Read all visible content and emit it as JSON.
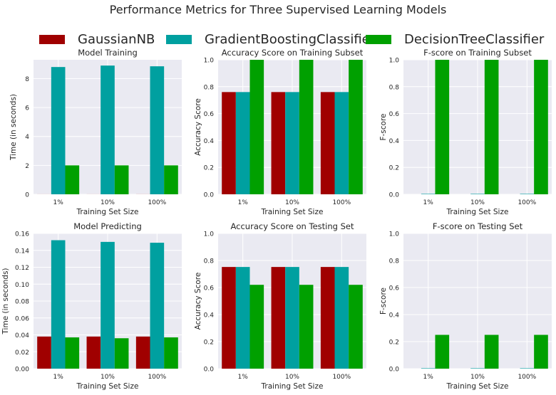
{
  "suptitle": "Performance Metrics for Three Supervised Learning Models",
  "colors": {
    "plot_bg": "#eaeaf2",
    "grid": "#ffffff",
    "series": [
      "#a00000",
      "#00a0a0",
      "#00a000"
    ]
  },
  "legend": {
    "placement": "top",
    "items": [
      "GaussianNB",
      "GradientBoostingClassifier",
      "DecisionTreeClassifier"
    ]
  },
  "chart_data": [
    {
      "type": "bar",
      "title": "Model Training",
      "xlabel": "Training Set Size",
      "ylabel": "Time (in seconds)",
      "categories": [
        "1%",
        "10%",
        "100%"
      ],
      "ylim": [
        0,
        9.3
      ],
      "yticks": [
        "0",
        "2",
        "4",
        "6",
        "8"
      ],
      "grid": true,
      "series": [
        {
          "name": "GaussianNB",
          "values": [
            0.003,
            0.003,
            0.004
          ]
        },
        {
          "name": "GradientBoostingClassifier",
          "values": [
            8.8,
            8.9,
            8.85
          ]
        },
        {
          "name": "DecisionTreeClassifier",
          "values": [
            2.0,
            2.0,
            2.0
          ]
        }
      ]
    },
    {
      "type": "bar",
      "title": "Accuracy Score on Training Subset",
      "xlabel": "Training Set Size",
      "ylabel": "Accuracy Score",
      "categories": [
        "1%",
        "10%",
        "100%"
      ],
      "ylim": [
        0,
        1
      ],
      "yticks": [
        "0.0",
        "0.2",
        "0.4",
        "0.6",
        "0.8",
        "1.0"
      ],
      "grid": true,
      "series": [
        {
          "name": "GaussianNB",
          "values": [
            0.76,
            0.76,
            0.76
          ]
        },
        {
          "name": "GradientBoostingClassifier",
          "values": [
            0.76,
            0.76,
            0.76
          ]
        },
        {
          "name": "DecisionTreeClassifier",
          "values": [
            1.0,
            1.0,
            1.0
          ]
        }
      ]
    },
    {
      "type": "bar",
      "title": "F-score on Training Subset",
      "xlabel": "Training Set Size",
      "ylabel": "F-score",
      "categories": [
        "1%",
        "10%",
        "100%"
      ],
      "ylim": [
        0,
        1
      ],
      "yticks": [
        "0.0",
        "0.2",
        "0.4",
        "0.6",
        "0.8",
        "1.0"
      ],
      "grid": true,
      "series": [
        {
          "name": "GaussianNB",
          "values": [
            0.0,
            0.0,
            0.0
          ]
        },
        {
          "name": "GradientBoostingClassifier",
          "values": [
            0.003,
            0.003,
            0.003
          ]
        },
        {
          "name": "DecisionTreeClassifier",
          "values": [
            1.0,
            1.0,
            1.0
          ]
        }
      ]
    },
    {
      "type": "bar",
      "title": "Model Predicting",
      "xlabel": "Training Set Size",
      "ylabel": "Time (in seconds)",
      "categories": [
        "1%",
        "10%",
        "100%"
      ],
      "ylim": [
        0,
        0.16
      ],
      "yticks": [
        "0.00",
        "0.02",
        "0.04",
        "0.06",
        "0.08",
        "0.10",
        "0.12",
        "0.14",
        "0.16"
      ],
      "grid": true,
      "series": [
        {
          "name": "GaussianNB",
          "values": [
            0.038,
            0.038,
            0.038
          ]
        },
        {
          "name": "GradientBoostingClassifier",
          "values": [
            0.152,
            0.15,
            0.149
          ]
        },
        {
          "name": "DecisionTreeClassifier",
          "values": [
            0.037,
            0.036,
            0.037
          ]
        }
      ]
    },
    {
      "type": "bar",
      "title": "Accuracy Score on Testing Set",
      "xlabel": "Training Set Size",
      "ylabel": "Accuracy Score",
      "categories": [
        "1%",
        "10%",
        "100%"
      ],
      "ylim": [
        0,
        1
      ],
      "yticks": [
        "0.0",
        "0.2",
        "0.4",
        "0.6",
        "0.8",
        "1.0"
      ],
      "grid": true,
      "series": [
        {
          "name": "GaussianNB",
          "values": [
            0.752,
            0.752,
            0.752
          ]
        },
        {
          "name": "GradientBoostingClassifier",
          "values": [
            0.752,
            0.752,
            0.752
          ]
        },
        {
          "name": "DecisionTreeClassifier",
          "values": [
            0.62,
            0.62,
            0.62
          ]
        }
      ]
    },
    {
      "type": "bar",
      "title": "F-score on Testing Set",
      "xlabel": "Training Set Size",
      "ylabel": "F-score",
      "categories": [
        "1%",
        "10%",
        "100%"
      ],
      "ylim": [
        0,
        1
      ],
      "yticks": [
        "0.0",
        "0.2",
        "0.4",
        "0.6",
        "0.8",
        "1.0"
      ],
      "grid": true,
      "series": [
        {
          "name": "GaussianNB",
          "values": [
            0.0,
            0.0,
            0.0
          ]
        },
        {
          "name": "GradientBoostingClassifier",
          "values": [
            0.003,
            0.003,
            0.003
          ]
        },
        {
          "name": "DecisionTreeClassifier",
          "values": [
            0.25,
            0.25,
            0.25
          ]
        }
      ]
    }
  ]
}
